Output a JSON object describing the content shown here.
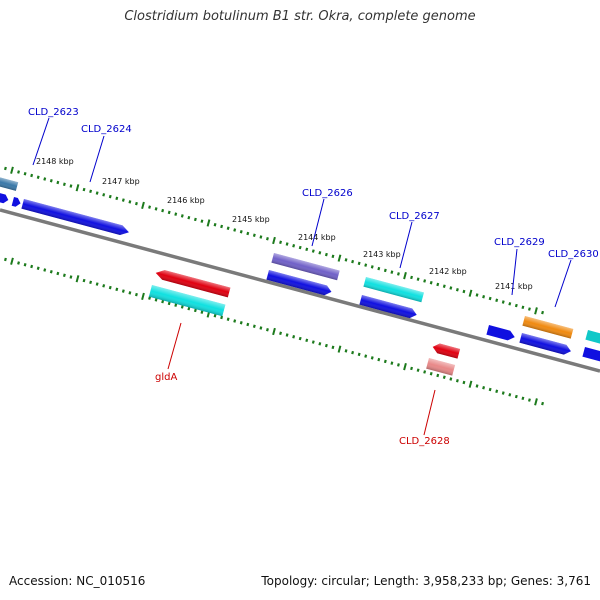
{
  "title": "Clostridium botulinum B1 str. Okra, complete genome",
  "footer": {
    "accession": "Accession: NC_010516",
    "summary": "Topology: circular; Length: 3,958,233 bp; Genes: 3,761"
  },
  "colors": {
    "backbone": "#7a7a7a",
    "tick": "#1c7a1c",
    "label_forward": "#0000cc",
    "label_reverse": "#cc0000",
    "gene_blue": "#1010e0",
    "gene_red": "#e00010",
    "gene_cyan": "#10e0e0",
    "gene_purple": "#7060c8",
    "gene_orange": "#f08a10",
    "gene_pink": "#e88888",
    "gene_steel": "#3a78a8"
  },
  "scale": {
    "ticks": [
      {
        "kbp": 2148,
        "label": "2148 kbp"
      },
      {
        "kbp": 2147,
        "label": "2147 kbp"
      },
      {
        "kbp": 2146,
        "label": "2146 kbp"
      },
      {
        "kbp": 2145,
        "label": "2145 kbp"
      },
      {
        "kbp": 2144,
        "label": "2144 kbp"
      },
      {
        "kbp": 2143,
        "label": "2143 kbp"
      },
      {
        "kbp": 2142,
        "label": "2142 kbp"
      },
      {
        "kbp": 2141,
        "label": "2141 kbp"
      }
    ]
  },
  "gene_labels": [
    {
      "name": "CLD_2623",
      "strand": "forward"
    },
    {
      "name": "CLD_2624",
      "strand": "forward"
    },
    {
      "name": "CLD_2626",
      "strand": "forward"
    },
    {
      "name": "CLD_2627",
      "strand": "forward"
    },
    {
      "name": "CLD_2629",
      "strand": "forward"
    },
    {
      "name": "CLD_2630",
      "strand": "forward"
    },
    {
      "name": "gldA",
      "strand": "reverse"
    },
    {
      "name": "CLD_2628",
      "strand": "reverse"
    }
  ]
}
